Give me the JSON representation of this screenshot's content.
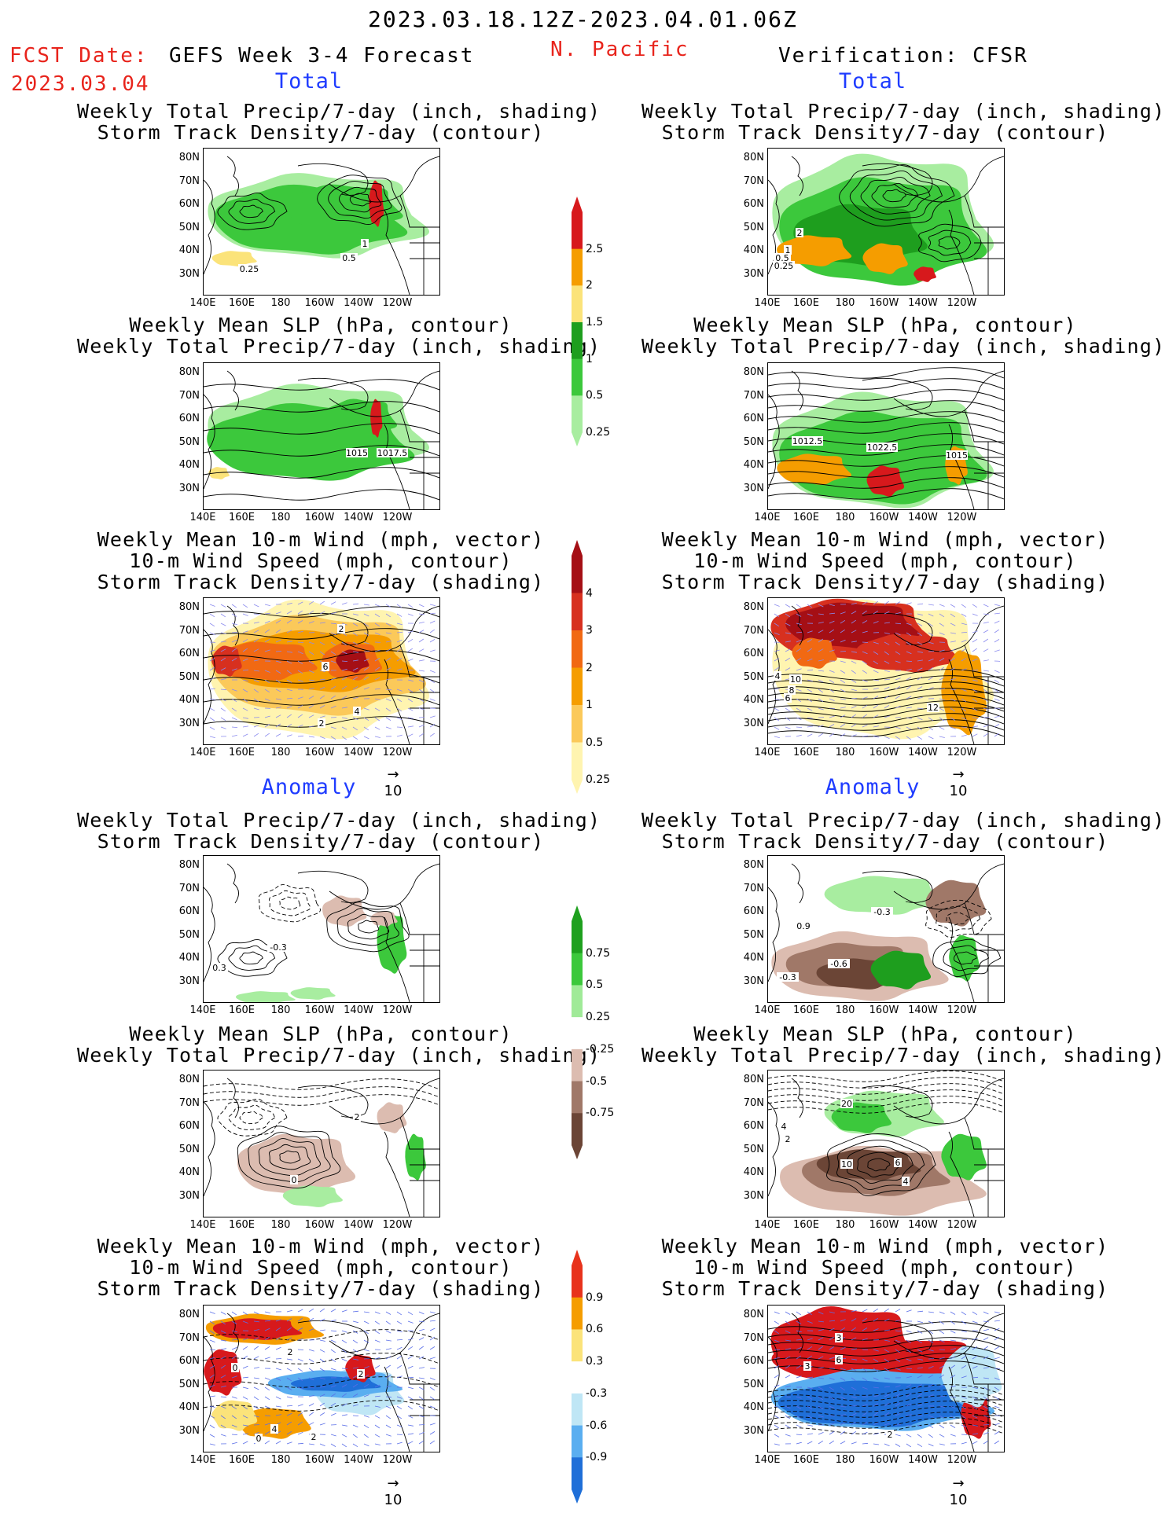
{
  "header": {
    "date_range": "2023.03.18.12Z-2023.04.01.06Z",
    "fcst_label": "FCST Date:",
    "fcst_date": "2023.03.04",
    "left_title": "GEFS Week 3-4 Forecast",
    "region": "N. Pacific",
    "right_title": "Verification: CFSR"
  },
  "sections": {
    "total": "Total",
    "anomaly": "Anomaly"
  },
  "titles": {
    "precip_storm": [
      "Weekly Total Precip/7-day (inch, shading)",
      "Storm Track Density/7-day (contour)"
    ],
    "slp_precip": [
      "Weekly Mean SLP (hPa, contour)",
      "Weekly Total Precip/7-day (inch, shading)"
    ],
    "wind_storm": [
      "Weekly Mean 10-m Wind (mph, vector)",
      "10-m Wind Speed (mph, contour)",
      "Storm Track Density/7-day (shading)"
    ]
  },
  "axes": {
    "lat_ticks": [
      "80N",
      "70N",
      "60N",
      "50N",
      "40N",
      "30N"
    ],
    "lon_ticks": [
      "140E",
      "160E",
      "180",
      "160W",
      "140W",
      "120W"
    ]
  },
  "colorbars": {
    "precip_total": {
      "ticks": [
        "2.5",
        "2",
        "1.5",
        "1",
        "0.5",
        "0.25"
      ],
      "colors": [
        "#d7191c",
        "#f59d00",
        "#fbe37a",
        "#1e9e1e",
        "#3cc83c",
        "#a8eda0"
      ]
    },
    "storm_total": {
      "ticks": [
        "4",
        "3",
        "2",
        "1",
        "0.5",
        "0.25"
      ],
      "colors": [
        "#a50f15",
        "#d7301f",
        "#f16913",
        "#f59d00",
        "#fbc95a",
        "#fff4b0"
      ]
    },
    "precip_anom": {
      "ticks": [
        "0.75",
        "0.5",
        "0.25",
        "-0.25",
        "-0.5",
        "-0.75"
      ],
      "colors": [
        "#1ea01e",
        "#3cc83c",
        "#a0ea98",
        "#ffffff",
        "#dcbcb0",
        "#a07868",
        "#6b4536"
      ]
    },
    "storm_anom": {
      "ticks": [
        "0.9",
        "0.6",
        "0.3",
        "-0.3",
        "-0.6",
        "-0.9"
      ],
      "colors": [
        "#e8331c",
        "#f59d00",
        "#fbe37a",
        "#ffffff",
        "#bfe6f5",
        "#5aaef0",
        "#1f6fd8"
      ]
    }
  },
  "vector_scale": "10",
  "contour_labels": {
    "r1l": [
      "1",
      "0.5",
      "0.25"
    ],
    "r1r": [
      "2",
      "1",
      "0.5",
      "0.25"
    ],
    "r2l": [
      "1015",
      "1017.5"
    ],
    "r2r": [
      "1012.5",
      "1022.5",
      "1015"
    ],
    "r3l": [
      "2",
      "6",
      "4",
      "2"
    ],
    "r3r": [
      "4",
      "10",
      "8",
      "6",
      "12"
    ],
    "r4l": [
      "-0.3",
      "0.3"
    ],
    "r4r": [
      "0.9",
      "-0.3",
      "-0.6",
      "-0.3"
    ],
    "r5l": [
      "2",
      "0"
    ],
    "r5r": [
      "20",
      "4",
      "2",
      "10",
      "6",
      "4"
    ],
    "r6l": [
      "2",
      "0",
      "2",
      "4",
      "2",
      "0"
    ],
    "r6r": [
      "3",
      "6",
      "3",
      "2"
    ]
  }
}
